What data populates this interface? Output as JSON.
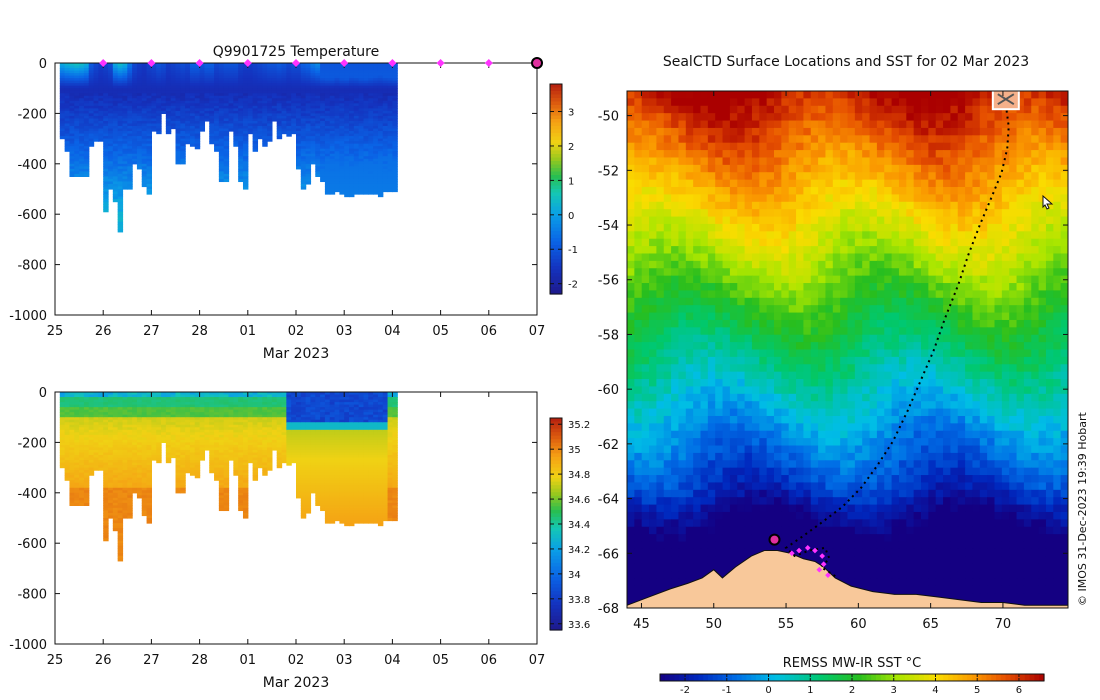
{
  "figure": {
    "credit": "© IMOS 31-Dec-2023 19:39 Hobart"
  },
  "chart_data": [
    {
      "type": "heatmap",
      "title": "Q9901725  Temperature",
      "xlabel": "Mar 2023",
      "ylabel": "",
      "x_tick_labels": [
        "25",
        "26",
        "27",
        "28",
        "01",
        "02",
        "03",
        "04",
        "05",
        "06",
        "07"
      ],
      "xlim_days": [
        0,
        10
      ],
      "ylim": [
        -1000,
        0
      ],
      "y_ticks": [
        0,
        -200,
        -400,
        -600,
        -800,
        -1000
      ],
      "colorbar": {
        "ticks": [
          3,
          2,
          1,
          0,
          -1,
          -2
        ],
        "range": [
          -2.3,
          3.8
        ]
      },
      "profile_markers_day": [
        1,
        2,
        3,
        4,
        5,
        6,
        7,
        8,
        9
      ],
      "current_marker_day": 10,
      "profiles": {
        "start_day": 0.1,
        "width_day": 0.1,
        "max_depth": [
          300,
          350,
          450,
          450,
          450,
          450,
          330,
          310,
          310,
          590,
          500,
          550,
          670,
          500,
          500,
          400,
          420,
          490,
          520,
          270,
          280,
          200,
          280,
          260,
          400,
          400,
          320,
          330,
          340,
          270,
          230,
          320,
          350,
          470,
          470,
          270,
          330,
          470,
          500,
          280,
          350,
          300,
          330,
          310,
          230,
          300,
          280,
          290,
          280,
          420,
          500,
          480,
          400,
          450,
          470,
          520,
          520,
          510,
          520,
          530,
          530,
          520,
          520,
          520,
          520,
          520,
          530,
          510,
          510,
          510
        ],
        "surface_temp": [
          0.2,
          0.4,
          0.5,
          0.6,
          0.5,
          0.3,
          -0.9,
          -1.2,
          -1.4,
          -1.3,
          -1.1,
          0.2,
          0.5,
          0.3,
          -0.5,
          -1.2,
          -1.4,
          -1.5,
          -1.3,
          -1.2,
          -1.0,
          -1.1,
          -1.4,
          -1.3,
          -1.2,
          -1.1,
          -1.2,
          -0.8,
          -0.8,
          -1.0,
          -0.8,
          -0.8,
          -1.2,
          -1.1,
          -1.0,
          -1.0,
          -1.0,
          -1.3,
          -1.4,
          -1.4,
          -1.3,
          -1.2,
          -1.1,
          -1.0,
          -1.0,
          -0.9,
          -1.0,
          -1.2,
          -1.1,
          -1.1,
          -0.8,
          -0.7,
          -0.4,
          -0.2,
          0.1,
          0.2,
          0.2,
          -0.1,
          0.2,
          0.3,
          -0.1,
          0.0,
          0.2,
          0.3,
          0.1,
          -0.1,
          -0.2,
          0.0,
          0.1,
          0.2
        ]
      }
    },
    {
      "type": "heatmap",
      "title": "",
      "xlabel": "Mar 2023",
      "ylabel": "",
      "x_tick_labels": [
        "25",
        "26",
        "27",
        "28",
        "01",
        "02",
        "03",
        "04",
        "05",
        "06",
        "07"
      ],
      "xlim_days": [
        0,
        10
      ],
      "ylim": [
        -1000,
        0
      ],
      "y_ticks": [
        0,
        -200,
        -400,
        -600,
        -800,
        -1000
      ],
      "colorbar": {
        "ticks": [
          35.2,
          35,
          34.8,
          34.6,
          34.4,
          34.2,
          34,
          33.8,
          33.6
        ],
        "range": [
          33.55,
          35.25
        ]
      },
      "fresh_window_days": [
        4.8,
        6.85
      ]
    },
    {
      "type": "heatmap",
      "title": "SealCTD Surface Locations and SST for 02 Mar 2023",
      "xlabel": "",
      "ylabel": "",
      "x_ticks": [
        45,
        50,
        55,
        60,
        65,
        70
      ],
      "y_ticks": [
        -50,
        -52,
        -54,
        -56,
        -58,
        -60,
        -62,
        -64,
        -66,
        -68
      ],
      "lon_range": [
        44,
        74.5
      ],
      "lat_range": [
        -68,
        -49.1
      ],
      "colorbar": {
        "label": "REMSS MW-IR SST °C",
        "ticks": [
          -2,
          -1,
          0,
          1,
          2,
          3,
          4,
          5,
          6
        ],
        "range": [
          -2.6,
          6.6
        ]
      },
      "track": [
        {
          "lon": 70.2,
          "lat": -49.6
        },
        {
          "lon": 70.4,
          "lat": -50.4
        },
        {
          "lon": 70.3,
          "lat": -51.2
        },
        {
          "lon": 69.9,
          "lat": -52.1
        },
        {
          "lon": 69.2,
          "lat": -53.0
        },
        {
          "lon": 68.4,
          "lat": -54.0
        },
        {
          "lon": 67.6,
          "lat": -55.1
        },
        {
          "lon": 66.9,
          "lat": -56.2
        },
        {
          "lon": 66.0,
          "lat": -57.4
        },
        {
          "lon": 65.2,
          "lat": -58.6
        },
        {
          "lon": 64.3,
          "lat": -59.7
        },
        {
          "lon": 63.4,
          "lat": -60.8
        },
        {
          "lon": 62.4,
          "lat": -61.9
        },
        {
          "lon": 61.3,
          "lat": -62.8
        },
        {
          "lon": 60.2,
          "lat": -63.6
        },
        {
          "lon": 58.9,
          "lat": -64.3
        },
        {
          "lon": 57.4,
          "lat": -64.9
        },
        {
          "lon": 56.1,
          "lat": -65.4
        },
        {
          "lon": 55.0,
          "lat": -65.8
        },
        {
          "lon": 55.6,
          "lat": -66.1
        },
        {
          "lon": 56.6,
          "lat": -65.9
        },
        {
          "lon": 57.7,
          "lat": -65.8
        },
        {
          "lon": 58.0,
          "lat": -66.2
        },
        {
          "lon": 57.4,
          "lat": -66.5
        },
        {
          "lon": 58.0,
          "lat": -66.7
        },
        {
          "lon": 58.6,
          "lat": -66.9
        }
      ],
      "profile_points": [
        {
          "lon": 55.4,
          "lat": -66.0
        },
        {
          "lon": 55.9,
          "lat": -65.9
        },
        {
          "lon": 56.5,
          "lat": -65.8
        },
        {
          "lon": 57.0,
          "lat": -65.9
        },
        {
          "lon": 57.5,
          "lat": -66.1
        },
        {
          "lon": 57.6,
          "lat": -66.4
        },
        {
          "lon": 57.3,
          "lat": -66.6
        },
        {
          "lon": 57.9,
          "lat": -66.8
        }
      ],
      "current_position": {
        "lon": 54.2,
        "lat": -65.5
      },
      "start_position": {
        "lon": 70.2,
        "lat": -49.4
      },
      "coast": [
        {
          "lon": 44.0,
          "lat": -67.9
        },
        {
          "lon": 45.5,
          "lat": -67.6
        },
        {
          "lon": 47.0,
          "lat": -67.3
        },
        {
          "lon": 48.2,
          "lat": -67.1
        },
        {
          "lon": 49.2,
          "lat": -66.9
        },
        {
          "lon": 50.0,
          "lat": -66.6
        },
        {
          "lon": 50.6,
          "lat": -66.9
        },
        {
          "lon": 51.5,
          "lat": -66.5
        },
        {
          "lon": 52.6,
          "lat": -66.1
        },
        {
          "lon": 53.5,
          "lat": -65.9
        },
        {
          "lon": 54.4,
          "lat": -65.9
        },
        {
          "lon": 55.3,
          "lat": -66.0
        },
        {
          "lon": 56.2,
          "lat": -66.2
        },
        {
          "lon": 57.0,
          "lat": -66.3
        },
        {
          "lon": 57.6,
          "lat": -66.5
        },
        {
          "lon": 58.4,
          "lat": -66.9
        },
        {
          "lon": 59.5,
          "lat": -67.2
        },
        {
          "lon": 61.0,
          "lat": -67.4
        },
        {
          "lon": 62.5,
          "lat": -67.5
        },
        {
          "lon": 64.0,
          "lat": -67.5
        },
        {
          "lon": 65.5,
          "lat": -67.6
        },
        {
          "lon": 67.0,
          "lat": -67.7
        },
        {
          "lon": 68.5,
          "lat": -67.8
        },
        {
          "lon": 70.0,
          "lat": -67.8
        },
        {
          "lon": 71.5,
          "lat": -67.9
        },
        {
          "lon": 73.0,
          "lat": -67.9
        },
        {
          "lon": 74.5,
          "lat": -67.9
        }
      ]
    }
  ]
}
